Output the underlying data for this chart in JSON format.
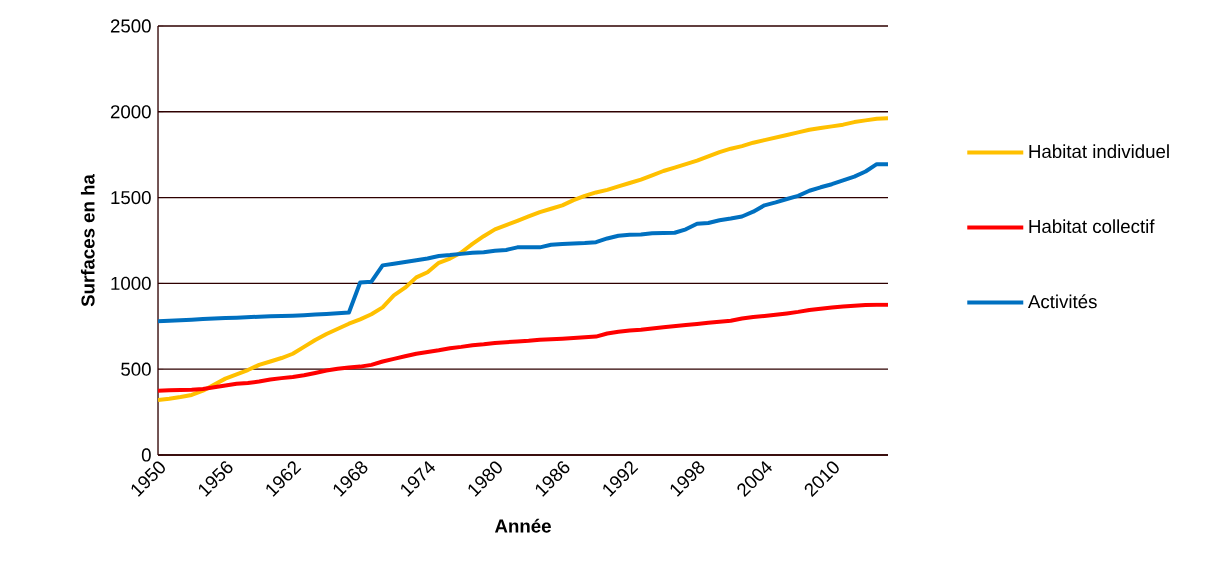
{
  "chart_data": {
    "type": "line",
    "xlabel": "Année",
    "ylabel": "Surfaces en ha",
    "x": [
      1950,
      1951,
      1952,
      1953,
      1954,
      1955,
      1956,
      1957,
      1958,
      1959,
      1960,
      1961,
      1962,
      1963,
      1964,
      1965,
      1966,
      1967,
      1968,
      1969,
      1970,
      1971,
      1972,
      1973,
      1974,
      1975,
      1976,
      1977,
      1978,
      1979,
      1980,
      1981,
      1982,
      1983,
      1984,
      1985,
      1986,
      1987,
      1988,
      1989,
      1990,
      1991,
      1992,
      1993,
      1994,
      1995,
      1996,
      1997,
      1998,
      1999,
      2000,
      2001,
      2002,
      2003,
      2004,
      2005,
      2006,
      2007,
      2008,
      2009,
      2010,
      2011,
      2012,
      2013,
      2014,
      2015
    ],
    "series": [
      {
        "name": "Habitat individuel",
        "color": "#ffc000",
        "values": [
          320,
          328,
          338,
          350,
          375,
          410,
          445,
          470,
          495,
          525,
          545,
          565,
          590,
          630,
          670,
          705,
          735,
          765,
          790,
          820,
          860,
          930,
          975,
          1035,
          1065,
          1120,
          1145,
          1180,
          1230,
          1275,
          1315,
          1340,
          1365,
          1390,
          1415,
          1435,
          1455,
          1485,
          1510,
          1530,
          1545,
          1565,
          1585,
          1605,
          1630,
          1655,
          1675,
          1695,
          1715,
          1740,
          1765,
          1785,
          1800,
          1820,
          1835,
          1850,
          1865,
          1880,
          1895,
          1905,
          1915,
          1925,
          1940,
          1950,
          1960,
          1962
        ]
      },
      {
        "name": "Habitat collectif",
        "color": "#ff0000",
        "values": [
          375,
          377,
          378,
          380,
          385,
          395,
          405,
          415,
          420,
          428,
          440,
          448,
          455,
          465,
          478,
          492,
          502,
          510,
          515,
          525,
          545,
          560,
          575,
          590,
          600,
          610,
          622,
          630,
          640,
          645,
          652,
          657,
          662,
          666,
          672,
          675,
          678,
          682,
          686,
          690,
          708,
          718,
          725,
          730,
          737,
          744,
          751,
          758,
          764,
          770,
          776,
          782,
          795,
          804,
          810,
          817,
          825,
          834,
          845,
          852,
          859,
          865,
          870,
          874,
          876,
          876
        ]
      },
      {
        "name": "Activités",
        "color": "#0070c0",
        "values": [
          780,
          782,
          785,
          788,
          792,
          795,
          798,
          800,
          803,
          806,
          808,
          810,
          812,
          815,
          818,
          822,
          826,
          830,
          1005,
          1010,
          1105,
          1115,
          1125,
          1135,
          1145,
          1160,
          1165,
          1172,
          1178,
          1182,
          1190,
          1195,
          1210,
          1210,
          1210,
          1225,
          1230,
          1232,
          1235,
          1240,
          1262,
          1278,
          1283,
          1285,
          1292,
          1293,
          1295,
          1315,
          1348,
          1352,
          1368,
          1378,
          1390,
          1418,
          1455,
          1472,
          1492,
          1510,
          1540,
          1560,
          1578,
          1600,
          1622,
          1652,
          1695,
          1695
        ]
      }
    ],
    "xlim": [
      1950,
      2015
    ],
    "ylim": [
      0,
      2500
    ],
    "xticks": [
      1950,
      1956,
      1962,
      1968,
      1974,
      1980,
      1986,
      1992,
      1998,
      2004,
      2010
    ],
    "yticks": [
      0,
      500,
      1000,
      1500,
      2000,
      2500
    ],
    "grid": "y",
    "legend": "right"
  }
}
